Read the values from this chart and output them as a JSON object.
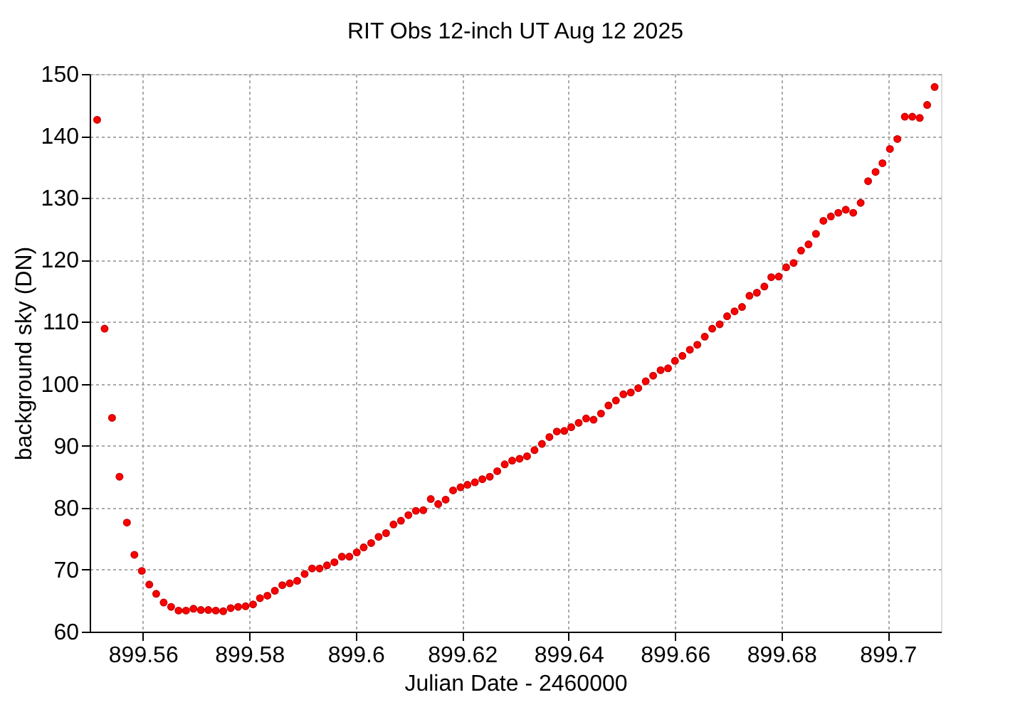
{
  "chart_data": {
    "type": "scatter",
    "title": "RIT Obs 12-inch UT Aug 12 2025",
    "xlabel": "Julian Date - 2460000",
    "ylabel": "background sky (DN)",
    "x": [
      899.5514,
      899.5528,
      899.5542,
      899.5556,
      899.557,
      899.5584,
      899.5598,
      899.5612,
      899.5625,
      899.5639,
      899.5653,
      899.5667,
      899.5681,
      899.5695,
      899.5709,
      899.5723,
      899.5737,
      899.5751,
      899.5765,
      899.5779,
      899.5793,
      899.5807,
      899.582,
      899.5834,
      899.5848,
      899.5862,
      899.5876,
      899.589,
      899.5904,
      899.5918,
      899.5932,
      899.5946,
      899.596,
      899.5974,
      899.5988,
      899.6002,
      899.6015,
      899.6029,
      899.6043,
      899.6057,
      899.6071,
      899.6085,
      899.6099,
      899.6113,
      899.6127,
      899.6141,
      899.6155,
      899.6169,
      899.6183,
      899.6197,
      899.621,
      899.6224,
      899.6238,
      899.6252,
      899.6266,
      899.628,
      899.6294,
      899.6308,
      899.6322,
      899.6336,
      899.635,
      899.6364,
      899.6378,
      899.6392,
      899.6405,
      899.6419,
      899.6433,
      899.6447,
      899.6461,
      899.6475,
      899.6489,
      899.6503,
      899.6517,
      899.6531,
      899.6545,
      899.6559,
      899.6573,
      899.6587,
      899.66,
      899.6614,
      899.6628,
      899.6642,
      899.6656,
      899.667,
      899.6684,
      899.6698,
      899.6712,
      899.6726,
      899.674,
      899.6754,
      899.6768,
      899.6781,
      899.6795,
      899.6809,
      899.6823,
      899.6837,
      899.6851,
      899.6865,
      899.6879,
      899.6893,
      899.6907,
      899.6921,
      899.6935,
      899.6949,
      899.6963,
      899.6977,
      899.699,
      899.7004,
      899.7018,
      899.7032,
      899.7046,
      899.706,
      899.7074,
      899.7088
    ],
    "series": [
      {
        "color": "#ff0000",
        "values": [
          142.6,
          108.9,
          94.5,
          85.0,
          77.6,
          72.4,
          69.8,
          67.6,
          66.1,
          64.7,
          64.0,
          63.4,
          63.4,
          63.7,
          63.5,
          63.5,
          63.4,
          63.3,
          63.8,
          64.0,
          64.1,
          64.4,
          65.4,
          65.8,
          66.6,
          67.5,
          67.8,
          68.2,
          69.3,
          70.2,
          70.2,
          70.7,
          71.2,
          72.1,
          72.1,
          72.8,
          73.6,
          74.3,
          75.3,
          75.9,
          77.3,
          77.9,
          78.8,
          79.5,
          79.6,
          81.4,
          80.6,
          81.3,
          82.8,
          83.3,
          83.7,
          84.1,
          84.6,
          85.0,
          85.9,
          87.0,
          87.6,
          87.9,
          88.3,
          89.3,
          90.3,
          91.4,
          92.3,
          92.4,
          93.0,
          93.7,
          94.4,
          94.2,
          95.2,
          96.5,
          97.3,
          98.3,
          98.6,
          99.3,
          100.4,
          101.3,
          102.2,
          102.5,
          103.7,
          104.5,
          105.5,
          106.3,
          107.6,
          108.9,
          109.6,
          110.9,
          111.7,
          112.4,
          114.2,
          114.7,
          115.7,
          117.2,
          117.3,
          118.8,
          119.5,
          121.5,
          122.5,
          124.2,
          126.3,
          127.0,
          127.6,
          128.1,
          127.6,
          129.2,
          132.7,
          134.2,
          135.6,
          137.9,
          139.5,
          143.1,
          143.1,
          142.9,
          145.0,
          147.9
        ]
      }
    ],
    "xlim": [
      899.55,
      899.71
    ],
    "xticks": [
      899.56,
      899.58,
      899.6,
      899.62,
      899.64,
      899.66,
      899.68,
      899.7
    ],
    "ylim": [
      60,
      150
    ],
    "yticks": [
      60,
      70,
      80,
      90,
      100,
      110,
      120,
      130,
      140,
      150
    ],
    "grid": true,
    "marker": "circle"
  }
}
